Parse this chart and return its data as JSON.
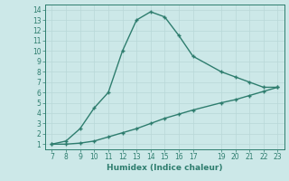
{
  "upper_x": [
    7,
    8,
    9,
    10,
    11,
    12,
    13,
    14,
    15,
    16,
    17,
    19,
    20,
    21,
    22,
    23
  ],
  "upper_y": [
    1.0,
    1.3,
    2.5,
    4.5,
    6.0,
    10.0,
    13.0,
    13.8,
    13.3,
    11.5,
    9.5,
    8.0,
    7.5,
    7.0,
    6.5,
    6.5
  ],
  "lower_x": [
    7,
    8,
    9,
    10,
    11,
    12,
    13,
    14,
    15,
    16,
    17,
    19,
    20,
    21,
    22,
    23
  ],
  "lower_y": [
    1.0,
    1.0,
    1.1,
    1.3,
    1.7,
    2.1,
    2.5,
    3.0,
    3.5,
    3.9,
    4.3,
    5.0,
    5.3,
    5.7,
    6.1,
    6.5
  ],
  "line_color": "#2e7d6e",
  "bg_color": "#cce8e8",
  "grid_color": "#b8d8d8",
  "xlabel": "Humidex (Indice chaleur)",
  "xlim": [
    6.5,
    23.5
  ],
  "ylim": [
    0.5,
    14.5
  ],
  "xticks": [
    7,
    8,
    9,
    10,
    11,
    12,
    13,
    14,
    15,
    16,
    17,
    19,
    20,
    21,
    22,
    23
  ],
  "yticks": [
    1,
    2,
    3,
    4,
    5,
    6,
    7,
    8,
    9,
    10,
    11,
    12,
    13,
    14
  ],
  "tick_fontsize": 5.5,
  "xlabel_fontsize": 6.5,
  "line_width": 1.0,
  "marker_size": 2.5
}
